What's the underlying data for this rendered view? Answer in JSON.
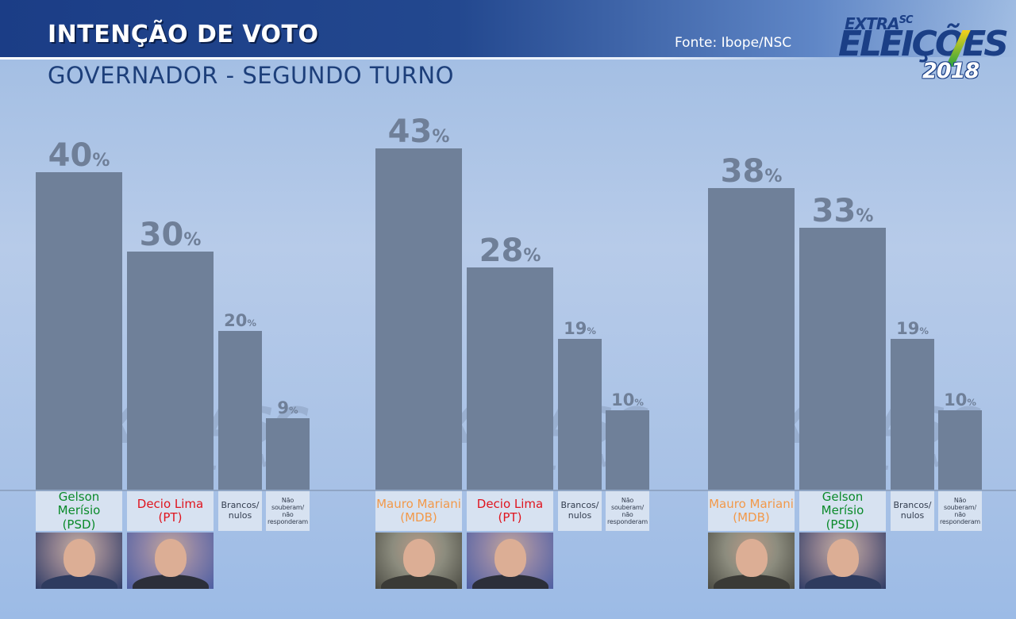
{
  "header": {
    "title": "INTENÇÃO DE VOTO",
    "subtitle": "GOVERNADOR - SEGUNDO TURNO",
    "source": "Fonte: Ibope/NSC"
  },
  "logo": {
    "line1": "EXTRA",
    "line1b": "SC",
    "line2": "ELEIÇÕES",
    "line3": "2018"
  },
  "watermark": {
    "main": "EXTRASC",
    "sub": ".COM"
  },
  "colors": {
    "psd": "#0a8a2a",
    "pt": "#e0141e",
    "mdb": "#f2994a",
    "bar": "#6f8099"
  },
  "chart_data": [
    {
      "type": "bar",
      "ylim": [
        0,
        100
      ],
      "categories": [
        "Gelson Merísio (PSD)",
        "Decio Lima (PT)",
        "Brancos/ nulos",
        "Não souberam/ não responderam"
      ],
      "values": [
        40,
        30,
        20,
        9
      ],
      "bars": [
        {
          "line1": "Gelson Merísio",
          "line2": "(PSD)",
          "value": "40",
          "unit": "%",
          "party": "psd",
          "photo": "gelson"
        },
        {
          "line1": "Decio Lima",
          "line2": "(PT)",
          "value": "30",
          "unit": "%",
          "party": "pt",
          "photo": "decio"
        },
        {
          "line1": "Brancos/",
          "line2": "nulos",
          "value": "20",
          "unit": "%",
          "party": "other"
        },
        {
          "line1": "Não souberam/",
          "line2": "não responderam",
          "value": "9",
          "unit": "%",
          "party": "other"
        }
      ]
    },
    {
      "type": "bar",
      "ylim": [
        0,
        100
      ],
      "categories": [
        "Mauro Mariani (MDB)",
        "Decio Lima (PT)",
        "Brancos/ nulos",
        "Não souberam/ não responderam"
      ],
      "values": [
        43,
        28,
        19,
        10
      ],
      "bars": [
        {
          "line1": "Mauro Mariani",
          "line2": "(MDB)",
          "value": "43",
          "unit": "%",
          "party": "mdb",
          "photo": "mauro"
        },
        {
          "line1": "Decio Lima",
          "line2": "(PT)",
          "value": "28",
          "unit": "%",
          "party": "pt",
          "photo": "decio"
        },
        {
          "line1": "Brancos/",
          "line2": "nulos",
          "value": "19",
          "unit": "%",
          "party": "other"
        },
        {
          "line1": "Não souberam/",
          "line2": "não responderam",
          "value": "10",
          "unit": "%",
          "party": "other"
        }
      ]
    },
    {
      "type": "bar",
      "ylim": [
        0,
        100
      ],
      "categories": [
        "Mauro Mariani (MDB)",
        "Gelson Merísio (PSD)",
        "Brancos/ nulos",
        "Não souberam/ não responderam"
      ],
      "values": [
        38,
        33,
        19,
        10
      ],
      "bars": [
        {
          "line1": "Mauro Mariani",
          "line2": "(MDB)",
          "value": "38",
          "unit": "%",
          "party": "mdb",
          "photo": "mauro"
        },
        {
          "line1": "Gelson Merísio",
          "line2": "(PSD)",
          "value": "33",
          "unit": "%",
          "party": "psd",
          "photo": "gelson"
        },
        {
          "line1": "Brancos/",
          "line2": "nulos",
          "value": "19",
          "unit": "%",
          "party": "other"
        },
        {
          "line1": "Não souberam/",
          "line2": "não responderam",
          "value": "10",
          "unit": "%",
          "party": "other"
        }
      ]
    }
  ]
}
